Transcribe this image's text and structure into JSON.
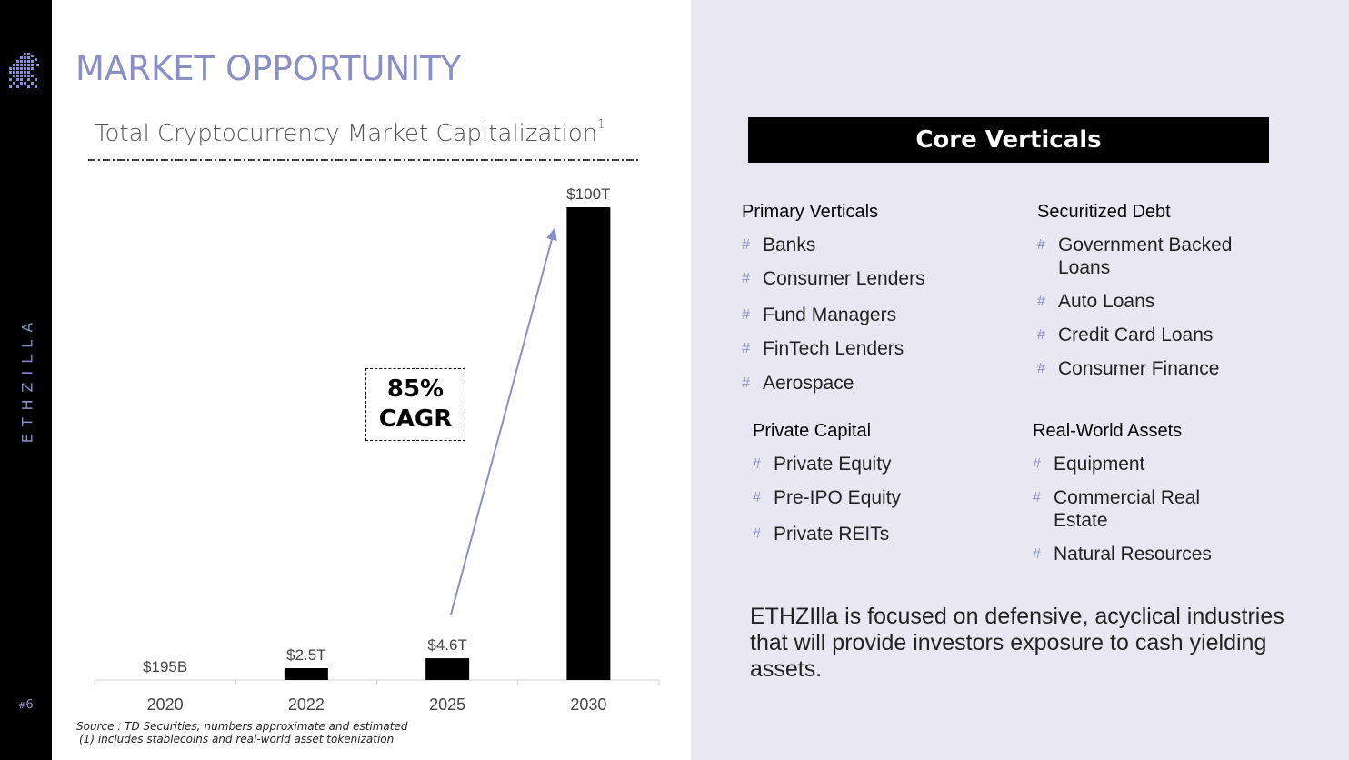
{
  "brand": {
    "vertical_text": "ETHZILLA",
    "page_number": "6",
    "page_symbol": "#"
  },
  "page_title": "MARKET OPPORTUNITY",
  "chart_title": "Total Cryptocurrency Market Capitalization",
  "chart_title_sup": "1",
  "cagr": {
    "line1": "85%",
    "line2": "CAGR"
  },
  "source": {
    "line1": "Source : TD Securities; numbers approximate and estimated",
    "line2": "(1) includes stablecoins and real-world asset tokenization"
  },
  "colors": {
    "accent": "#8c8fc4",
    "bar": "#000000",
    "panel": "#e9e8f2"
  },
  "chart_data": {
    "type": "bar",
    "title": "Total Cryptocurrency Market Capitalization",
    "categories": [
      "2020",
      "2022",
      "2025",
      "2030"
    ],
    "values": [
      0.195,
      2.5,
      4.6,
      100
    ],
    "value_labels": [
      "$195B",
      "$2.5T",
      "$4.6T",
      "$100T"
    ],
    "unit": "$T",
    "ylim": [
      0,
      100
    ],
    "grid": false,
    "annotations": [
      "85% CAGR"
    ]
  },
  "core": {
    "header": "Core Verticals",
    "groups": [
      {
        "title": "Primary Verticals",
        "items": [
          "Banks",
          "Consumer Lenders",
          "Fund Managers",
          "FinTech Lenders",
          "Aerospace"
        ]
      },
      {
        "title": "Securitized Debt",
        "items": [
          "Government Backed Loans",
          "Auto Loans",
          "Credit Card Loans",
          "Consumer Finance"
        ]
      },
      {
        "title": "Private Capital",
        "items": [
          "Private Equity",
          "Pre-IPO Equity",
          "Private REITs"
        ]
      },
      {
        "title": "Real-World Assets",
        "items": [
          "Equipment",
          "Commercial Real Estate",
          "Natural Resources"
        ]
      }
    ],
    "bullet": "#",
    "summary": "ETHZIlla is focused on defensive, acyclical industries that will provide investors exposure to cash yielding assets."
  }
}
